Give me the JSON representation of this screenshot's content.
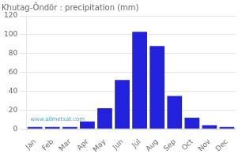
{
  "chart_data": {
    "type": "bar",
    "title": "Khutag-Öndör : precipitation (mm)",
    "categories": [
      "Jan",
      "Feb",
      "Mar",
      "Apr",
      "May",
      "Jun",
      "Jul",
      "Aug",
      "Sep",
      "Oct",
      "Nov",
      "Dec"
    ],
    "values": [
      2,
      2,
      2,
      8,
      22,
      52,
      103,
      88,
      35,
      12,
      4,
      2
    ],
    "color": "#2222dd",
    "ylim": [
      0,
      120
    ],
    "yticks": [
      0,
      20,
      40,
      60,
      80,
      100,
      120
    ],
    "grid": true,
    "annotations": [
      "www.allmetsat.com"
    ]
  }
}
